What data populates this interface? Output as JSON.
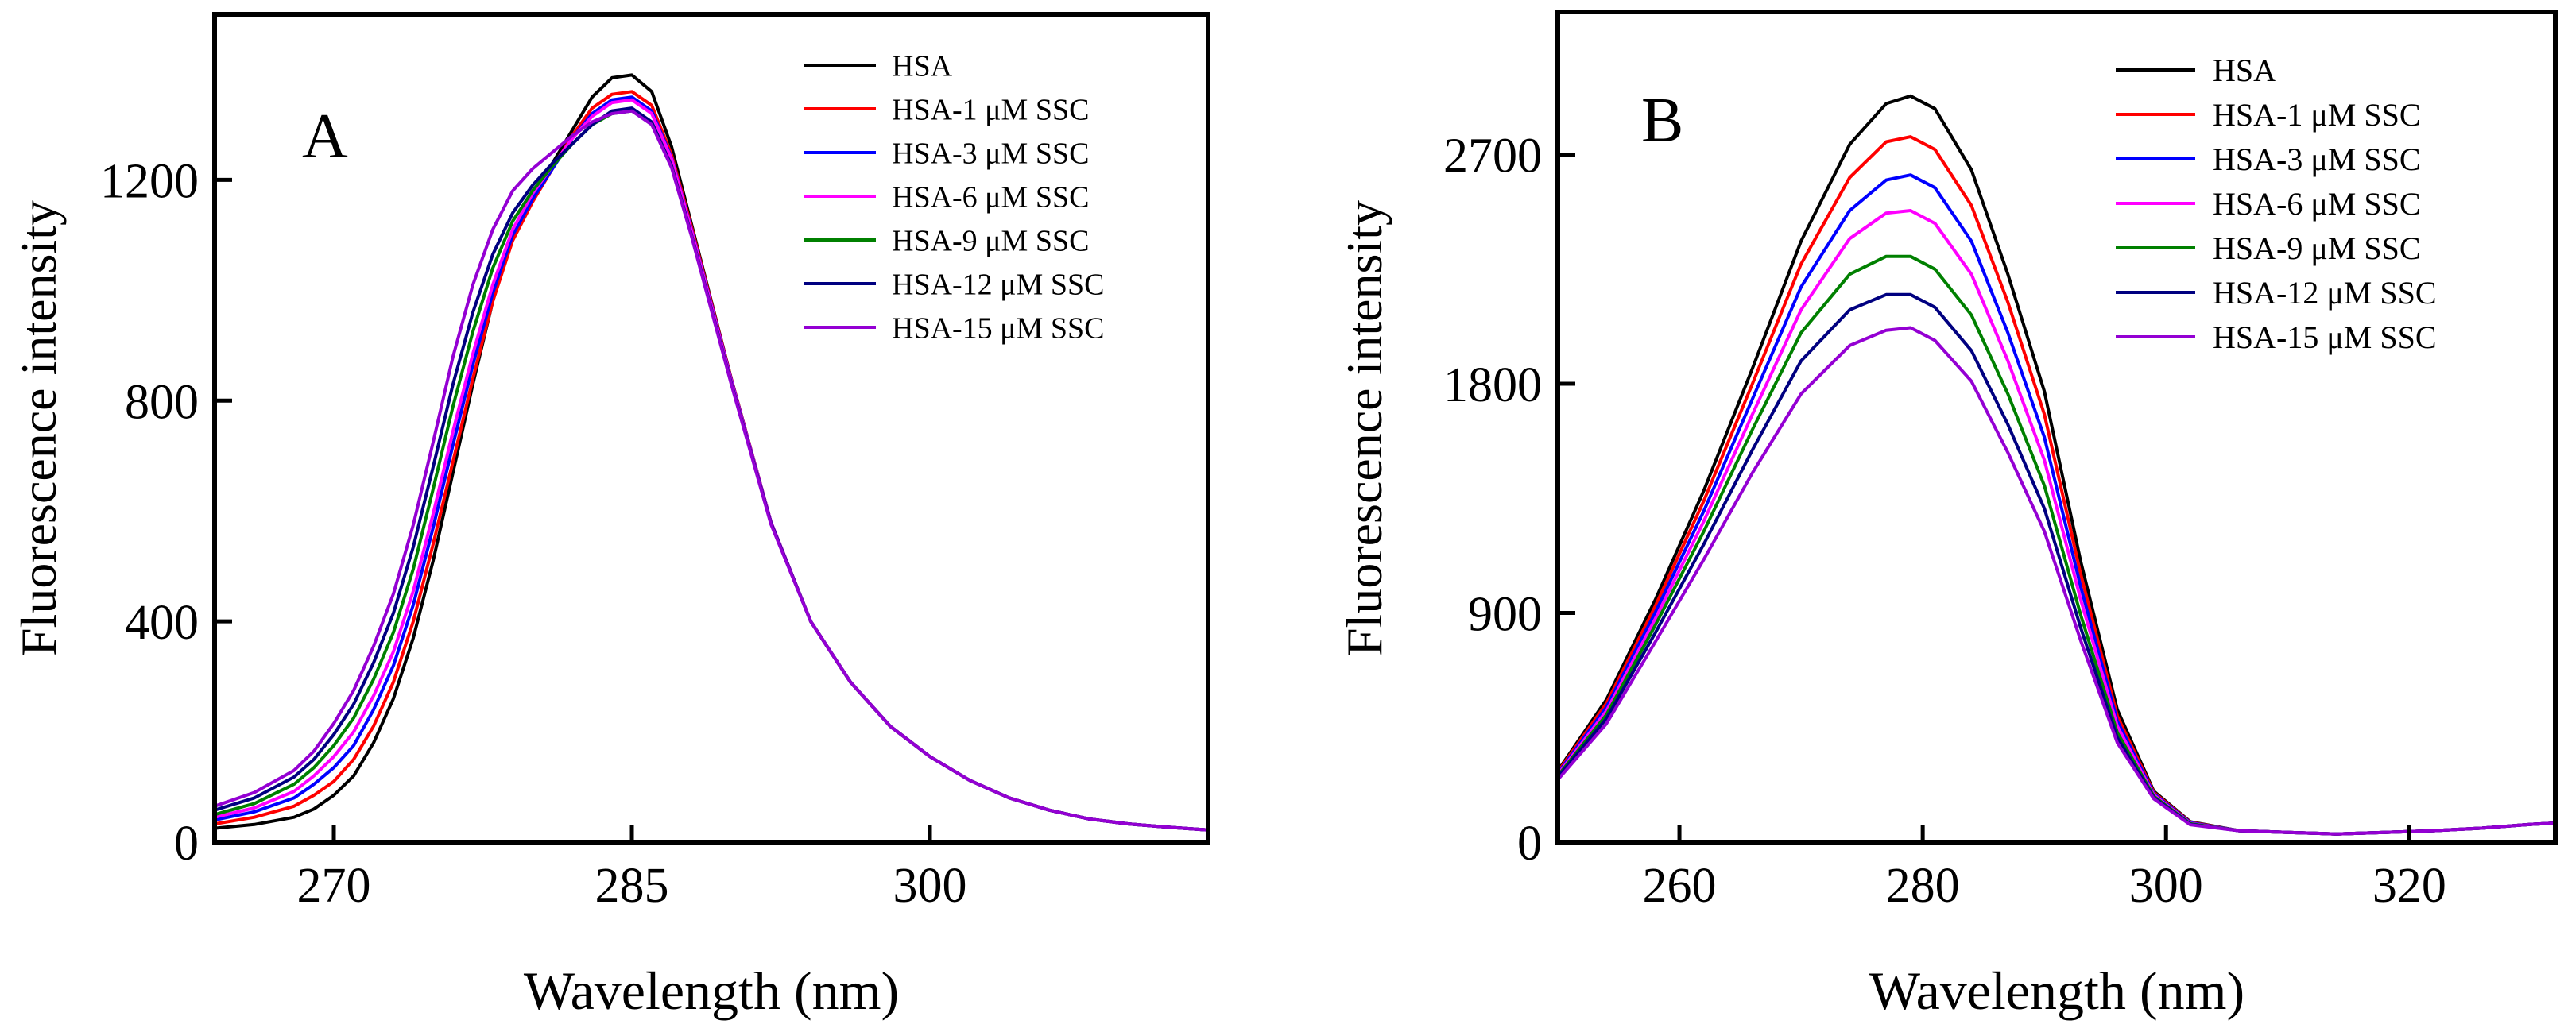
{
  "chart_data": [
    {
      "type": "line",
      "panel_label": "A",
      "xlabel": "Wavelength (nm)",
      "ylabel": "Fluorescence intensity",
      "xlim": [
        264,
        314
      ],
      "ylim": [
        0,
        1500
      ],
      "xticks": [
        270,
        285,
        300
      ],
      "yticks": [
        0,
        400,
        800,
        1200
      ],
      "legend_position": "top-right",
      "x": [
        264,
        266,
        268,
        269,
        270,
        271,
        272,
        273,
        274,
        275,
        276,
        277,
        278,
        279,
        280,
        281,
        282,
        283,
        284,
        285,
        286,
        287,
        288,
        290,
        292,
        294,
        296,
        298,
        300,
        302,
        304,
        306,
        308,
        310,
        312,
        314
      ],
      "series": [
        {
          "name": "HSA",
          "color": "#000000",
          "values": [
            25,
            32,
            45,
            60,
            85,
            120,
            180,
            260,
            370,
            510,
            670,
            830,
            980,
            1100,
            1170,
            1230,
            1290,
            1350,
            1385,
            1390,
            1360,
            1260,
            1120,
            840,
            580,
            400,
            290,
            210,
            155,
            112,
            80,
            58,
            42,
            33,
            27,
            22
          ]
        },
        {
          "name": "HSA-1 μM SSC",
          "color": "#ff0000",
          "values": [
            33,
            45,
            65,
            85,
            110,
            150,
            210,
            290,
            400,
            540,
            690,
            840,
            980,
            1090,
            1160,
            1220,
            1280,
            1330,
            1355,
            1360,
            1335,
            1245,
            1115,
            840,
            580,
            400,
            290,
            210,
            155,
            112,
            80,
            58,
            42,
            33,
            27,
            22
          ]
        },
        {
          "name": "HSA-3 μM SSC",
          "color": "#0000ff",
          "values": [
            40,
            55,
            80,
            105,
            135,
            175,
            240,
            320,
            430,
            570,
            720,
            865,
            995,
            1100,
            1165,
            1220,
            1275,
            1320,
            1345,
            1350,
            1325,
            1240,
            1110,
            838,
            580,
            400,
            290,
            210,
            155,
            112,
            80,
            58,
            42,
            33,
            27,
            22
          ]
        },
        {
          "name": "HSA-6 μM SSC",
          "color": "#ff00ff",
          "values": [
            45,
            62,
            92,
            120,
            155,
            200,
            265,
            345,
            455,
            595,
            745,
            885,
            1010,
            1110,
            1175,
            1225,
            1275,
            1315,
            1340,
            1345,
            1320,
            1238,
            1108,
            836,
            580,
            400,
            290,
            210,
            155,
            112,
            80,
            58,
            42,
            33,
            27,
            22
          ]
        },
        {
          "name": "HSA-9 μM SSC",
          "color": "#008000",
          "values": [
            50,
            70,
            105,
            135,
            175,
            225,
            295,
            380,
            495,
            640,
            790,
            925,
            1040,
            1125,
            1180,
            1225,
            1265,
            1300,
            1320,
            1325,
            1302,
            1225,
            1100,
            832,
            578,
            400,
            290,
            210,
            155,
            112,
            80,
            58,
            42,
            33,
            27,
            22
          ]
        },
        {
          "name": "HSA-12 μM SSC",
          "color": "#000080",
          "values": [
            58,
            80,
            118,
            150,
            195,
            250,
            325,
            415,
            535,
            680,
            830,
            960,
            1065,
            1140,
            1190,
            1230,
            1265,
            1300,
            1325,
            1330,
            1305,
            1225,
            1100,
            832,
            578,
            400,
            290,
            210,
            155,
            112,
            80,
            58,
            42,
            33,
            27,
            22
          ]
        },
        {
          "name": "HSA-15 μM SSC",
          "color": "#9400d3",
          "values": [
            65,
            90,
            130,
            165,
            215,
            275,
            355,
            450,
            575,
            725,
            880,
            1010,
            1110,
            1180,
            1220,
            1250,
            1280,
            1305,
            1320,
            1325,
            1300,
            1222,
            1098,
            830,
            576,
            400,
            290,
            210,
            155,
            112,
            80,
            58,
            42,
            33,
            27,
            22
          ]
        }
      ]
    },
    {
      "type": "line",
      "panel_label": "B",
      "xlabel": "Wavelength (nm)",
      "ylabel": "Fluorescence intensity",
      "xlim": [
        250,
        332
      ],
      "ylim": [
        0,
        3260
      ],
      "xticks": [
        260,
        280,
        300,
        320
      ],
      "yticks": [
        0,
        900,
        1800,
        2700
      ],
      "legend_position": "top-right",
      "x": [
        250,
        254,
        258,
        262,
        266,
        270,
        274,
        277,
        279,
        281,
        284,
        287,
        290,
        293,
        296,
        299,
        302,
        306,
        310,
        314,
        318,
        322,
        326,
        330,
        332
      ],
      "series": [
        {
          "name": "HSA",
          "color": "#000000",
          "values": [
            280,
            560,
            950,
            1380,
            1860,
            2360,
            2740,
            2900,
            2930,
            2880,
            2640,
            2230,
            1770,
            1100,
            520,
            200,
            80,
            45,
            38,
            32,
            38,
            45,
            55,
            70,
            75
          ]
        },
        {
          "name": "HSA-1 μM SSC",
          "color": "#ff0000",
          "values": [
            275,
            545,
            925,
            1340,
            1800,
            2270,
            2610,
            2750,
            2770,
            2720,
            2500,
            2120,
            1680,
            1050,
            495,
            195,
            78,
            45,
            38,
            32,
            38,
            45,
            55,
            70,
            75
          ]
        },
        {
          "name": "HSA-3 μM SSC",
          "color": "#0000ff",
          "values": [
            270,
            530,
            900,
            1300,
            1740,
            2180,
            2480,
            2600,
            2620,
            2570,
            2360,
            2000,
            1590,
            1000,
            475,
            190,
            76,
            45,
            38,
            32,
            38,
            45,
            55,
            70,
            75
          ]
        },
        {
          "name": "HSA-6 μM SSC",
          "color": "#ff00ff",
          "values": [
            265,
            515,
            875,
            1260,
            1680,
            2090,
            2370,
            2470,
            2480,
            2430,
            2230,
            1890,
            1500,
            950,
            455,
            185,
            74,
            45,
            38,
            32,
            38,
            45,
            55,
            70,
            75
          ]
        },
        {
          "name": "HSA-9 μM SSC",
          "color": "#008000",
          "values": [
            260,
            500,
            850,
            1220,
            1620,
            2000,
            2230,
            2300,
            2300,
            2250,
            2070,
            1760,
            1400,
            890,
            430,
            180,
            72,
            45,
            38,
            32,
            38,
            45,
            55,
            70,
            75
          ]
        },
        {
          "name": "HSA-12 μM SSC",
          "color": "#000080",
          "values": [
            255,
            485,
            820,
            1170,
            1540,
            1890,
            2090,
            2150,
            2150,
            2100,
            1930,
            1640,
            1310,
            840,
            410,
            175,
            70,
            45,
            38,
            32,
            38,
            45,
            55,
            70,
            75
          ]
        },
        {
          "name": "HSA-15 μM SSC",
          "color": "#9400d3",
          "values": [
            245,
            465,
            785,
            1110,
            1450,
            1760,
            1950,
            2010,
            2020,
            1970,
            1810,
            1530,
            1220,
            790,
            390,
            170,
            68,
            45,
            38,
            32,
            38,
            45,
            55,
            70,
            75
          ]
        }
      ]
    }
  ]
}
